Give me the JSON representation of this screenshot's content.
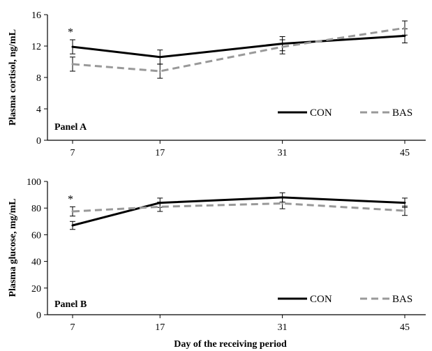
{
  "chart_data": [
    {
      "type": "line",
      "panel_label": "Panel A",
      "ylabel": "Plasma cortisol, ng/mL",
      "x": [
        7,
        17,
        31,
        45
      ],
      "x_tick_labels": [
        "7",
        "17",
        "31",
        "45"
      ],
      "ylim": [
        0,
        16
      ],
      "y_ticks": [
        0,
        4,
        8,
        12,
        16
      ],
      "y_tick_labels": [
        "0",
        "4",
        "8",
        "12",
        "16"
      ],
      "grid": false,
      "legend_position": "bottom-right",
      "series": [
        {
          "name": "CON",
          "style": "solid",
          "color": "#000000",
          "values": [
            11.9,
            10.6,
            12.3,
            13.3
          ],
          "errors": [
            0.9,
            0.9,
            0.9,
            0.9
          ]
        },
        {
          "name": "BAS",
          "style": "dashed",
          "color": "#999999",
          "values": [
            9.7,
            8.8,
            11.9,
            14.3
          ],
          "errors": [
            0.9,
            0.9,
            0.9,
            0.9
          ]
        }
      ],
      "annotations": [
        {
          "text": "*",
          "x": 7
        }
      ]
    },
    {
      "type": "line",
      "panel_label": "Panel B",
      "ylabel": "Plasma glucose, mg/mL",
      "xlabel": "Day of the receiving period",
      "x": [
        7,
        17,
        31,
        45
      ],
      "x_tick_labels": [
        "7",
        "17",
        "31",
        "45"
      ],
      "ylim": [
        0,
        100
      ],
      "y_ticks": [
        0,
        20,
        40,
        60,
        80,
        100
      ],
      "y_tick_labels": [
        "0",
        "20",
        "40",
        "60",
        "80",
        "100"
      ],
      "grid": false,
      "legend_position": "bottom-right",
      "series": [
        {
          "name": "CON",
          "style": "solid",
          "color": "#000000",
          "values": [
            67,
            84,
            88,
            84
          ],
          "errors": [
            3,
            3.5,
            3.5,
            3.5
          ]
        },
        {
          "name": "BAS",
          "style": "dashed",
          "color": "#999999",
          "values": [
            77.5,
            81,
            83.5,
            78
          ],
          "errors": [
            3.5,
            3.5,
            4,
            3.5
          ]
        }
      ],
      "annotations": [
        {
          "text": "*",
          "x": 7
        }
      ]
    }
  ]
}
